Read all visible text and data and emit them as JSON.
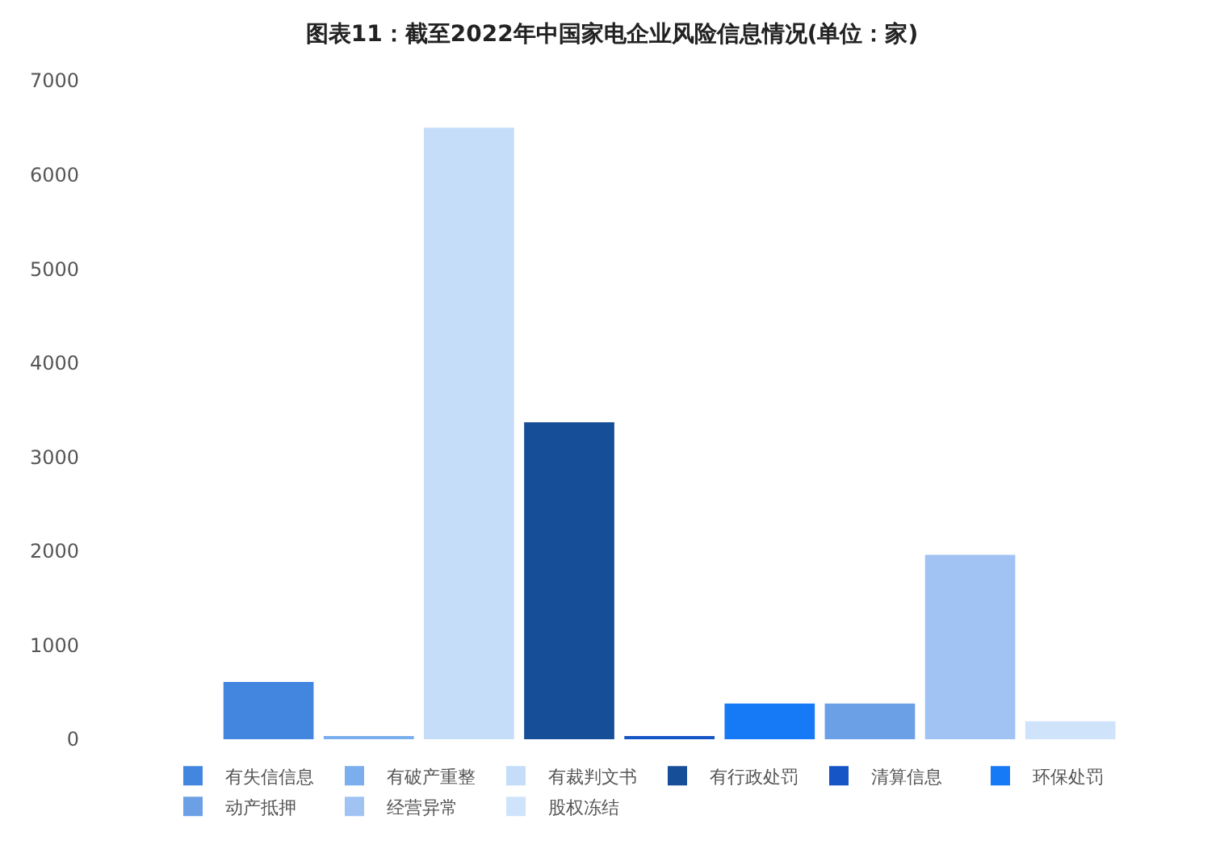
{
  "chart_data": {
    "type": "bar",
    "title": "图表11：截至2022年中国家电企业风险信息情况(单位：家)",
    "categories": [
      null
    ],
    "series": [
      {
        "name": "有失信信息",
        "color": "#4286e0",
        "values": [
          610
        ]
      },
      {
        "name": "有破产重整",
        "color": "#7aaeed",
        "values": [
          30
        ]
      },
      {
        "name": "有裁判文书",
        "color": "#c5ddf9",
        "values": [
          6500
        ]
      },
      {
        "name": "有行政处罚",
        "color": "#174e98",
        "values": [
          3370
        ]
      },
      {
        "name": "清算信息",
        "color": "#1655c6",
        "values": [
          30
        ]
      },
      {
        "name": "环保处罚",
        "color": "#1679f6",
        "values": [
          380
        ]
      },
      {
        "name": "动产抵押",
        "color": "#6b9fe6",
        "values": [
          380
        ]
      },
      {
        "name": "经营异常",
        "color": "#a0c3f4",
        "values": [
          1960
        ]
      },
      {
        "name": "股权冻结",
        "color": "#cfe3fb",
        "values": [
          190
        ]
      }
    ],
    "ylim": [
      0,
      7000
    ],
    "yticks": [
      0,
      1000,
      2000,
      3000,
      4000,
      5000,
      6000,
      7000
    ],
    "tick_labels": "y",
    "legend": "bottom"
  }
}
